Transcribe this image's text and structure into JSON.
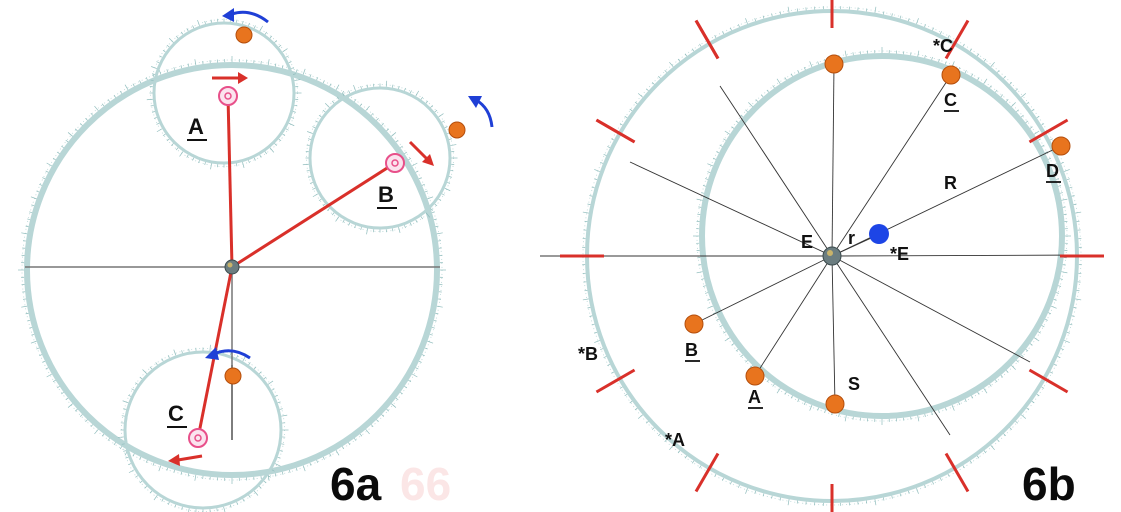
{
  "figure_a": {
    "label": "6a",
    "watermark": "66",
    "epicycle_labels": [
      "A",
      "B",
      "C"
    ]
  },
  "figure_b": {
    "label": "6b",
    "planet_labels": [
      "C",
      "D",
      "B",
      "A"
    ],
    "star_labels": [
      "*C",
      "*B",
      "*A"
    ],
    "center_label": "E",
    "equant_label": "*E",
    "small_r_label": "r",
    "big_r_label": "R",
    "sun_label": "S"
  },
  "colors": {
    "ring": "#b8d6d6",
    "ring_ticks": "#8fbcbc",
    "red": "#d9302a",
    "blue": "#1f3fd6",
    "planet": "#e8741e",
    "pink": "#e8508a",
    "equant": "#1d45e6"
  }
}
